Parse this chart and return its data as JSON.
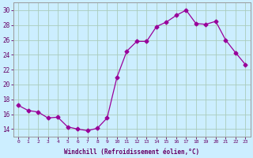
{
  "x": [
    0,
    1,
    2,
    3,
    4,
    5,
    6,
    7,
    8,
    9,
    10,
    11,
    12,
    13,
    14,
    15,
    16,
    17,
    18,
    19,
    20,
    21,
    22,
    23
  ],
  "y": [
    17.2,
    16.5,
    16.3,
    15.5,
    15.6,
    14.3,
    14.0,
    13.8,
    14.1,
    15.5,
    21.0,
    24.5,
    25.8,
    25.8,
    27.8,
    28.4,
    29.3,
    30.0,
    28.2,
    28.1,
    28.5,
    26.0,
    24.3,
    22.7
  ],
  "line_color": "#990099",
  "marker": "D",
  "marker_size": 2.5,
  "bg_color": "#cceeff",
  "grid_color": "#aaccbb",
  "xlabel": "Windchill (Refroidissement éolien,°C)",
  "xlabel_color": "#660066",
  "tick_color": "#660066",
  "ylim": [
    13,
    31
  ],
  "yticks": [
    14,
    16,
    18,
    20,
    22,
    24,
    26,
    28,
    30
  ],
  "xlim": [
    -0.5,
    23.5
  ],
  "axis_color": "#999999",
  "figwidth": 3.2,
  "figheight": 2.0,
  "dpi": 100
}
